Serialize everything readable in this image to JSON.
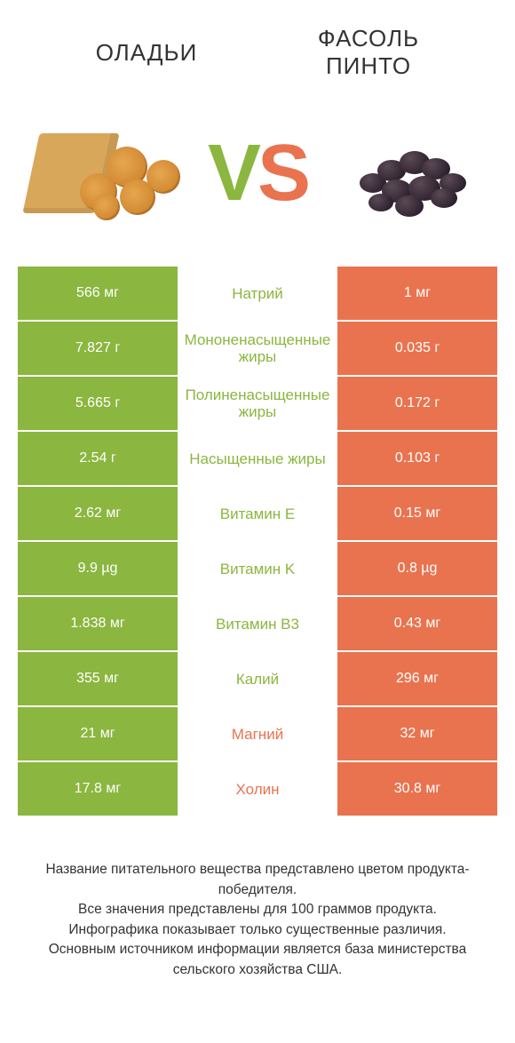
{
  "colors": {
    "green": "#8bb63f",
    "orange": "#e9734e",
    "text": "#333333"
  },
  "header": {
    "left_title": "ОЛАДЬИ",
    "right_title_line1": "ФАСОЛЬ",
    "right_title_line2": "ПИНТО"
  },
  "vs": {
    "v": "V",
    "s": "S"
  },
  "rows": [
    {
      "left": "566 мг",
      "label": "Натрий",
      "right": "1 мг",
      "winner": "left"
    },
    {
      "left": "7.827 г",
      "label": "Мононенасыщенные жиры",
      "right": "0.035 г",
      "winner": "left"
    },
    {
      "left": "5.665 г",
      "label": "Полиненасыщенные жиры",
      "right": "0.172 г",
      "winner": "left"
    },
    {
      "left": "2.54 г",
      "label": "Насыщенные жиры",
      "right": "0.103 г",
      "winner": "left"
    },
    {
      "left": "2.62 мг",
      "label": "Витамин E",
      "right": "0.15 мг",
      "winner": "left"
    },
    {
      "left": "9.9 µg",
      "label": "Витамин K",
      "right": "0.8 µg",
      "winner": "left"
    },
    {
      "left": "1.838 мг",
      "label": "Витамин B3",
      "right": "0.43 мг",
      "winner": "left"
    },
    {
      "left": "355 мг",
      "label": "Калий",
      "right": "296 мг",
      "winner": "left"
    },
    {
      "left": "21 мг",
      "label": "Магний",
      "right": "32 мг",
      "winner": "right"
    },
    {
      "left": "17.8 мг",
      "label": "Холин",
      "right": "30.8 мг",
      "winner": "right"
    }
  ],
  "footnote": {
    "l1": "Название питательного вещества представлено цветом продукта-победителя.",
    "l2": "Все значения представлены для 100 граммов продукта.",
    "l3": "Инфографика показывает только существенные различия.",
    "l4": "Основным источником информации является база министерства сельского хозяйства США."
  }
}
